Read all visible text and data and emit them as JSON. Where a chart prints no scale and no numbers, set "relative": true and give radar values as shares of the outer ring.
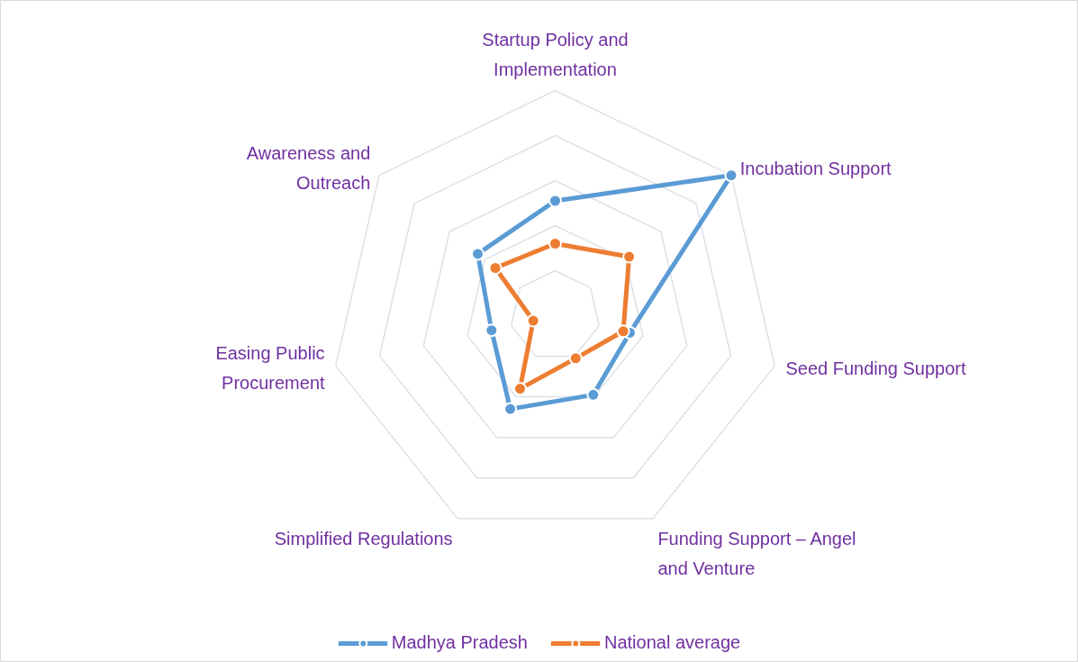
{
  "chart_data": {
    "type": "radar",
    "relative": true,
    "grid": true,
    "legend": "bottom",
    "marker": "circle",
    "line_style": "solid",
    "categories": [
      "Startup Policy and\nImplementation",
      "Incubation Support",
      "Seed Funding Support",
      "Funding Support – Angel\nand Venture",
      "Simplified Regulations",
      "Easing Public\nProcurement",
      "Awareness and\nOutreach"
    ],
    "series": [
      {
        "name": "Madhya Pradesh",
        "color": "#5b9bd5",
        "values": [
          0.51,
          1.0,
          0.34,
          0.39,
          0.46,
          0.29,
          0.44
        ]
      },
      {
        "name": "National average",
        "color": "#ed7d31",
        "values": [
          0.32,
          0.42,
          0.31,
          0.21,
          0.36,
          0.1,
          0.34
        ]
      }
    ]
  }
}
